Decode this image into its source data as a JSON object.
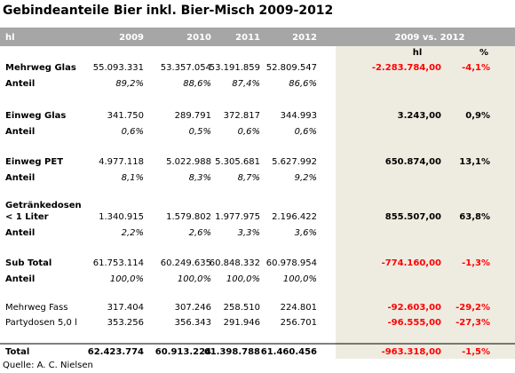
{
  "title": "Gebindeanteile Bier inkl. Bier-Misch 2009-2012",
  "header": {
    "unit": "hl",
    "years": [
      "2009",
      "2010",
      "2011",
      "2012"
    ],
    "comparison": "2009 vs. 2012",
    "change_unit": "hl",
    "change_pct_unit": "%"
  },
  "segments": [
    {
      "label": [
        "Mehrweg Glas"
      ],
      "values": [
        "55.093.331",
        "53.357.054",
        "53.191.859",
        "52.809.547"
      ],
      "change": "-2.283.784,00",
      "change_pct": "-4,1%",
      "share_label": "Anteil",
      "shares": [
        "89,2%",
        "88,6%",
        "87,4%",
        "86,6%"
      ]
    },
    {
      "label": [
        "Einweg Glas"
      ],
      "values": [
        "341.750",
        "289.791",
        "372.817",
        "344.993"
      ],
      "change": "3.243,00",
      "change_pct": "0,9%",
      "share_label": "Anteil",
      "shares": [
        "0,6%",
        "0,5%",
        "0,6%",
        "0,6%"
      ]
    },
    {
      "label": [
        "Einweg PET"
      ],
      "values": [
        "4.977.118",
        "5.022.988",
        "5.305.681",
        "5.627.992"
      ],
      "change": "650.874,00",
      "change_pct": "13,1%",
      "share_label": "Anteil",
      "shares": [
        "8,1%",
        "8,3%",
        "8,7%",
        "9,2%"
      ]
    },
    {
      "label": [
        "Getränkedosen",
        "< 1 Liter"
      ],
      "values": [
        "1.340.915",
        "1.579.802",
        "1.977.975",
        "2.196.422"
      ],
      "change": "855.507,00",
      "change_pct": "63,8%",
      "share_label": "Anteil",
      "shares": [
        "2,2%",
        "2,6%",
        "3,3%",
        "3,6%"
      ]
    },
    {
      "label": [
        "Sub Total"
      ],
      "values": [
        "61.753.114",
        "60.249.635",
        "60.848.332",
        "60.978.954"
      ],
      "change": "-774.160,00",
      "change_pct": "-1,3%",
      "share_label": "Anteil",
      "shares": [
        "100,0%",
        "100,0%",
        "100,0%",
        "100,0%"
      ]
    }
  ],
  "others": [
    {
      "label": [
        "Mehrweg Fass"
      ],
      "values": [
        "317.404",
        "307.246",
        "258.510",
        "224.801"
      ],
      "change": "-92.603,00",
      "change_pct": "-29,2%"
    },
    {
      "label": [
        "Partydosen 5,0 l"
      ],
      "values": [
        "353.256",
        "356.343",
        "291.946",
        "256.701"
      ],
      "change": "-96.555,00",
      "change_pct": "-27,3%"
    }
  ],
  "total": {
    "label": [
      "Total"
    ],
    "values": [
      "62.423.774",
      "60.913.224",
      "61.398.788",
      "61.460.456"
    ],
    "change": "-963.318,00",
    "change_pct": "-1,5%"
  },
  "source": "Quelle: A. C. Nielsen"
}
